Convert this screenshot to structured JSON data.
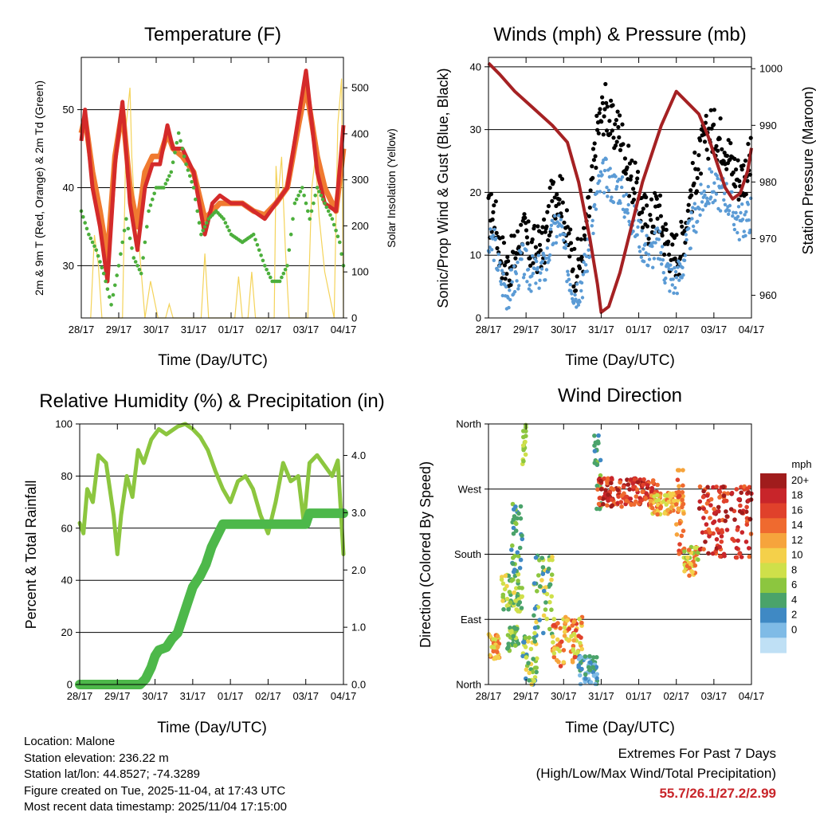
{
  "footer": {
    "location": "Location: Malone",
    "elevation": "Station elevation: 236.22 m",
    "latlon": "Station lat/lon: 44.8527; -74.3289",
    "created": "Figure created on Tue, 2025-11-04, at 17:43 UTC",
    "recent": "Most recent data timestamp: 2025/11/04 17:15:00",
    "extremes_title": "Extremes For Past 7 Days",
    "extremes_sub": "(High/Low/Max Wind/Total Precipitation)",
    "extremes_values": "55.7/26.1/27.2/2.99",
    "extremes_color": "#c8252a"
  },
  "chart_data": [
    {
      "id": "temp",
      "type": "line",
      "title": "Temperature (F)",
      "xlabel": "Time (Day/UTC)",
      "ylabel": "2m & 9m T (Red, Orange) & 2m Td (Green)",
      "y2label": "Solar Insolation (Yellow)",
      "categories": [
        "28/17",
        "29/17",
        "30/17",
        "31/17",
        "01/17",
        "02/17",
        "03/17",
        "04/17"
      ],
      "xlim": [
        0,
        7
      ],
      "ylim": [
        23.3,
        56.7
      ],
      "yticks": [
        30,
        40,
        50
      ],
      "y2lim": [
        0,
        566
      ],
      "y2ticks": [
        0,
        100,
        200,
        300,
        400,
        500
      ],
      "series": [
        {
          "name": "9m T",
          "color": "#f07a30",
          "axis": "left",
          "kind": "thick",
          "x": [
            0,
            0.1,
            0.3,
            0.5,
            0.7,
            0.9,
            1.1,
            1.3,
            1.5,
            1.7,
            1.9,
            2.1,
            2.3,
            2.45,
            2.7,
            3.0,
            3.3,
            3.5,
            3.7,
            4.0,
            4.3,
            4.6,
            4.9,
            5.2,
            5.5,
            5.8,
            6.0,
            6.3,
            6.5,
            6.8,
            7.0
          ],
          "y": [
            47,
            49,
            42,
            37,
            31,
            44,
            50,
            40,
            35,
            42,
            44,
            44,
            47,
            45,
            44,
            42,
            36,
            37,
            38,
            38,
            38,
            37,
            36.5,
            38,
            40,
            48,
            53,
            44,
            40,
            37,
            45
          ]
        },
        {
          "name": "2m T",
          "color": "#d42a2a",
          "axis": "left",
          "kind": "thick",
          "x": [
            0,
            0.1,
            0.3,
            0.5,
            0.7,
            0.9,
            1.1,
            1.3,
            1.5,
            1.7,
            1.9,
            2.1,
            2.3,
            2.45,
            2.7,
            3.0,
            3.3,
            3.5,
            3.7,
            4.0,
            4.3,
            4.6,
            4.9,
            5.2,
            5.5,
            5.8,
            6.0,
            6.3,
            6.5,
            6.8,
            7.0
          ],
          "y": [
            46,
            50,
            40,
            35,
            28,
            43,
            51,
            38,
            32,
            40,
            43,
            43,
            48,
            45,
            45,
            42,
            34,
            38,
            39,
            38,
            38,
            37,
            36,
            38,
            40,
            49,
            55,
            42,
            38,
            37,
            48
          ]
        },
        {
          "name": "2m Td",
          "color": "#4caf3c",
          "axis": "left",
          "kind": "dots",
          "x": [
            0,
            0.2,
            0.4,
            0.6,
            0.8,
            1.0,
            1.2,
            1.4,
            1.6,
            1.8,
            2.0,
            2.2,
            2.4,
            2.6,
            2.8,
            3.0,
            3.2,
            3.4,
            3.6,
            3.8,
            4.0,
            4.3,
            4.6,
            4.9,
            5.1,
            5.3,
            5.5,
            5.7,
            5.9,
            6.1,
            6.3,
            6.5,
            6.7,
            6.9,
            7.0
          ],
          "y": [
            37,
            34,
            32,
            29,
            25,
            30,
            36,
            31,
            29,
            37,
            40,
            40,
            42,
            47,
            43,
            40,
            34,
            36,
            37,
            36,
            34,
            33,
            34,
            30,
            28,
            28,
            30,
            38,
            40,
            36,
            40,
            38,
            36,
            33,
            30
          ]
        },
        {
          "name": "Solar Insolation",
          "color": "#f4d35a",
          "axis": "right",
          "kind": "spikes",
          "x": [
            0.25,
            0.35,
            0.45,
            0.55,
            1.1,
            1.2,
            1.3,
            1.35,
            1.45,
            1.55,
            1.7,
            1.85,
            2.05,
            2.25,
            2.35,
            2.45,
            2.55,
            3.2,
            3.3,
            3.4,
            4.1,
            4.2,
            4.3,
            4.45,
            4.55,
            4.65,
            5.15,
            5.2,
            5.25,
            5.35,
            5.45,
            5.55,
            6.05,
            6.15,
            6.25,
            6.35,
            6.5,
            6.75,
            6.85,
            6.95,
            7.0
          ],
          "y": [
            0,
            180,
            120,
            0,
            0,
            420,
            500,
            350,
            200,
            150,
            0,
            80,
            0,
            0,
            30,
            0,
            0,
            0,
            140,
            0,
            0,
            90,
            0,
            0,
            100,
            0,
            0,
            330,
            260,
            350,
            150,
            0,
            0,
            280,
            350,
            220,
            100,
            0,
            420,
            520,
            0
          ]
        }
      ]
    },
    {
      "id": "winds",
      "type": "scatter",
      "title": "Winds (mph) & Pressure (mb)",
      "xlabel": "Time (Day/UTC)",
      "ylabel": "Sonic/Prop Wind & Gust (Blue, Black)",
      "y2label": "Station Pressure (Maroon)",
      "categories": [
        "28/17",
        "29/17",
        "30/17",
        "31/17",
        "01/17",
        "02/17",
        "03/17",
        "04/17"
      ],
      "xlim": [
        0,
        7
      ],
      "ylim": [
        0,
        41.5
      ],
      "yticks": [
        0,
        10,
        20,
        30,
        40
      ],
      "y2lim": [
        956,
        1002
      ],
      "y2ticks": [
        960,
        970,
        980,
        990,
        1000
      ],
      "series": [
        {
          "name": "Gust",
          "color": "#000000",
          "axis": "left",
          "kind": "band",
          "x": [
            0,
            0.15,
            0.3,
            0.5,
            0.7,
            0.9,
            1.1,
            1.3,
            1.5,
            1.7,
            1.9,
            2.1,
            2.3,
            2.5,
            2.7,
            2.9,
            3.1,
            3.3,
            3.5,
            3.7,
            3.9,
            4.1,
            4.3,
            4.5,
            4.7,
            4.9,
            5.1,
            5.3,
            5.5,
            5.7,
            5.9,
            6.1,
            6.3,
            6.5,
            6.7,
            6.9,
            7.0
          ],
          "y": [
            16,
            17,
            11,
            8,
            10,
            14,
            11,
            11,
            12,
            19,
            21,
            13,
            8,
            10,
            18,
            30,
            34,
            30,
            30,
            24,
            21,
            17,
            15,
            18,
            13,
            10,
            11,
            17,
            23,
            27,
            30,
            29,
            28,
            24,
            22,
            24,
            25
          ],
          "spread": 4
        },
        {
          "name": "Wind",
          "color": "#5b9bd5",
          "axis": "left",
          "kind": "band",
          "x": [
            0,
            0.15,
            0.3,
            0.5,
            0.7,
            0.9,
            1.1,
            1.3,
            1.5,
            1.7,
            1.9,
            2.1,
            2.3,
            2.5,
            2.7,
            2.9,
            3.1,
            3.3,
            3.5,
            3.7,
            3.9,
            4.1,
            4.3,
            4.5,
            4.7,
            4.9,
            5.1,
            5.3,
            5.5,
            5.7,
            5.9,
            6.1,
            6.3,
            6.5,
            6.7,
            6.9,
            7.0
          ],
          "y": [
            11,
            12,
            7,
            4,
            6,
            9,
            7,
            7,
            8,
            13,
            15,
            8,
            4,
            6,
            12,
            20,
            23,
            21,
            21,
            17,
            15,
            12,
            10,
            12,
            8,
            6,
            7,
            12,
            16,
            19,
            21,
            20,
            20,
            17,
            15,
            16,
            17
          ],
          "spread": 3
        },
        {
          "name": "Station Pressure",
          "color": "#a52123",
          "axis": "right",
          "kind": "line",
          "x": [
            0,
            0.3,
            0.7,
            1.2,
            1.7,
            2.1,
            2.4,
            2.7,
            2.9,
            3.0,
            3.2,
            3.5,
            3.8,
            4.1,
            4.4,
            4.6,
            4.8,
            5.0,
            5.3,
            5.6,
            5.85,
            6.1,
            6.3,
            6.5,
            6.7,
            6.9,
            7.0
          ],
          "y": [
            1001,
            999,
            996,
            993,
            990,
            987,
            980,
            970,
            962,
            957,
            958,
            964,
            972,
            980,
            986,
            990,
            993,
            996,
            994,
            992,
            988,
            983,
            979,
            977,
            978,
            982,
            986
          ]
        }
      ]
    },
    {
      "id": "rh",
      "type": "line",
      "title": "Relative Humidity (%) & Precipitation (in)",
      "xlabel": "Time (Day/UTC)",
      "ylabel": "Percent & Total Rainfall",
      "categories": [
        "28/17",
        "29/17",
        "30/17",
        "31/17",
        "01/17",
        "02/17",
        "03/17",
        "04/17"
      ],
      "xlim": [
        0,
        7
      ],
      "ylim": [
        0,
        100
      ],
      "yticks": [
        0,
        20,
        40,
        60,
        80,
        100
      ],
      "y2lim": [
        0,
        4.55
      ],
      "y2ticks": [
        "0.0",
        "1.0",
        "2.0",
        "3.0",
        "4.0"
      ],
      "series": [
        {
          "name": "Relative Humidity",
          "color": "#8cc63f",
          "axis": "left",
          "x": [
            0,
            0.1,
            0.2,
            0.35,
            0.5,
            0.7,
            0.9,
            1.0,
            1.1,
            1.25,
            1.4,
            1.55,
            1.7,
            1.9,
            2.1,
            2.3,
            2.6,
            2.8,
            3.0,
            3.2,
            3.4,
            3.6,
            3.8,
            4.0,
            4.2,
            4.4,
            4.6,
            4.8,
            5.0,
            5.2,
            5.4,
            5.6,
            5.8,
            5.95,
            6.1,
            6.3,
            6.5,
            6.7,
            6.85,
            7.0
          ],
          "y": [
            62,
            58,
            75,
            70,
            88,
            85,
            65,
            50,
            65,
            80,
            72,
            90,
            85,
            94,
            98,
            96,
            99,
            100,
            98,
            95,
            90,
            82,
            75,
            70,
            78,
            80,
            75,
            65,
            58,
            70,
            85,
            78,
            80,
            62,
            85,
            88,
            84,
            80,
            86,
            50
          ]
        },
        {
          "name": "Total Precipitation",
          "color": "#4db84a",
          "axis": "right",
          "x": [
            0,
            1.0,
            1.6,
            1.75,
            1.9,
            2.0,
            2.1,
            2.3,
            2.45,
            2.6,
            2.75,
            2.9,
            3.0,
            3.1,
            3.2,
            3.35,
            3.5,
            3.65,
            3.8,
            3.9,
            6.0,
            6.05,
            6.1,
            7.0
          ],
          "y": [
            0,
            0,
            0,
            0.1,
            0.3,
            0.5,
            0.6,
            0.65,
            0.8,
            0.9,
            1.2,
            1.5,
            1.7,
            1.8,
            1.9,
            2.1,
            2.4,
            2.6,
            2.8,
            2.8,
            2.8,
            2.9,
            2.99,
            2.99
          ]
        }
      ]
    },
    {
      "id": "wdir",
      "type": "scatter",
      "title": "Wind Direction",
      "xlabel": "Time (Day/UTC)",
      "ylabel": "Direction (Colored By Speed)",
      "categories": [
        "28/17",
        "29/17",
        "30/17",
        "31/17",
        "01/17",
        "02/17",
        "03/17",
        "04/17"
      ],
      "xlim": [
        0,
        7
      ],
      "ylim": [
        0,
        360
      ],
      "yticklabels": [
        "North",
        "East",
        "South",
        "West",
        "North"
      ],
      "yticks": [
        0,
        90,
        180,
        270,
        360
      ],
      "colorbar": {
        "unit": "mph",
        "labels": [
          "20+",
          "18",
          "16",
          "14",
          "12",
          "10",
          "8",
          "6",
          "4",
          "2",
          "0"
        ],
        "colors": [
          "#a01c1c",
          "#c8252a",
          "#e0412b",
          "#ef6a2f",
          "#f6a43c",
          "#f4d04a",
          "#cfe04a",
          "#8cc63f",
          "#4aa36a",
          "#3f89c4",
          "#7fbbe6",
          "#bfe0f5"
        ]
      },
      "points_clusters": [
        {
          "x": [
            0,
            0.3
          ],
          "dir": [
            35,
            70
          ],
          "speeds": [
            10,
            14,
            12,
            8
          ]
        },
        {
          "x": [
            0.35,
            0.9
          ],
          "dir": [
            100,
            155
          ],
          "speeds": [
            6,
            8,
            4,
            10
          ]
        },
        {
          "x": [
            0.5,
            0.8
          ],
          "dir": [
            45,
            80
          ],
          "speeds": [
            6,
            8,
            4
          ]
        },
        {
          "x": [
            0.6,
            0.9
          ],
          "dir": [
            150,
            250
          ],
          "speeds": [
            2,
            4,
            6
          ]
        },
        {
          "x": [
            0.9,
            1.0
          ],
          "dir": [
            300,
            360
          ],
          "speeds": [
            6,
            8
          ]
        },
        {
          "x": [
            0.9,
            1.3
          ],
          "dir": [
            0,
            70
          ],
          "speeds": [
            4,
            6,
            8,
            10,
            2
          ]
        },
        {
          "x": [
            1.2,
            1.7
          ],
          "dir": [
            70,
            180
          ],
          "speeds": [
            4,
            6,
            8,
            10,
            2
          ]
        },
        {
          "x": [
            1.7,
            2.5
          ],
          "dir": [
            25,
            95
          ],
          "speeds": [
            14,
            16,
            12,
            8,
            10
          ]
        },
        {
          "x": [
            2.4,
            2.9
          ],
          "dir": [
            0,
            40
          ],
          "speeds": [
            4,
            2,
            0
          ]
        },
        {
          "x": [
            2.8,
            3.0
          ],
          "dir": [
            240,
            350
          ],
          "speeds": [
            2,
            4,
            6
          ]
        },
        {
          "x": [
            2.9,
            4.5
          ],
          "dir": [
            245,
            285
          ],
          "speeds": [
            20,
            18,
            16,
            14
          ]
        },
        {
          "x": [
            4.3,
            5.2
          ],
          "dir": [
            235,
            265
          ],
          "speeds": [
            10,
            12,
            8,
            14
          ]
        },
        {
          "x": [
            5.0,
            5.2
          ],
          "dir": [
            180,
            300
          ],
          "speeds": [
            12,
            14,
            16
          ]
        },
        {
          "x": [
            5.2,
            5.6
          ],
          "dir": [
            150,
            190
          ],
          "speeds": [
            10,
            8,
            6,
            14
          ]
        },
        {
          "x": [
            5.6,
            7.0
          ],
          "dir": [
            175,
            275
          ],
          "speeds": [
            20,
            18,
            16,
            14
          ]
        }
      ]
    }
  ]
}
